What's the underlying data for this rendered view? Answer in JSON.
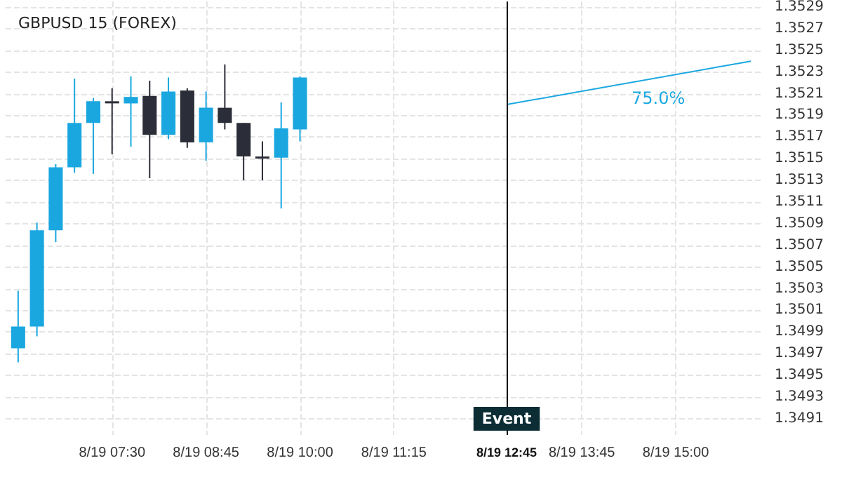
{
  "chart_data": {
    "type": "candlestick",
    "title": "GBPUSD 15 (FOREX)",
    "x": [
      "--08-19T06:15",
      "--08-19T06:30",
      "--08-19T06:45",
      "--08-19T07:00",
      "--08-19T07:15",
      "--08-19T07:30",
      "--08-19T07:45",
      "--08-19T08:00",
      "--08-19T08:15",
      "--08-19T08:30",
      "--08-19T08:45",
      "--08-19T09:00",
      "--08-19T09:15",
      "--08-19T09:30",
      "--08-19T09:45",
      "--08-19T10:00"
    ],
    "ohlc": [
      [
        1.34975,
        1.35028,
        1.34962,
        1.34995
      ],
      [
        1.34995,
        1.35091,
        1.34986,
        1.35084
      ],
      [
        1.35084,
        1.35145,
        1.35073,
        1.35142
      ],
      [
        1.35142,
        1.35224,
        1.35137,
        1.35183
      ],
      [
        1.35183,
        1.35206,
        1.35136,
        1.35203
      ],
      [
        1.35203,
        1.35215,
        1.35154,
        1.35203
      ],
      [
        1.35201,
        1.35226,
        1.35161,
        1.35207
      ],
      [
        1.35208,
        1.35222,
        1.35132,
        1.35172
      ],
      [
        1.35172,
        1.35225,
        1.35168,
        1.35212
      ],
      [
        1.35213,
        1.35215,
        1.3516,
        1.35165
      ],
      [
        1.35165,
        1.35212,
        1.35148,
        1.35197
      ],
      [
        1.35197,
        1.35237,
        1.35177,
        1.35183
      ],
      [
        1.35183,
        1.35183,
        1.3513,
        1.35152
      ],
      [
        1.35152,
        1.35166,
        1.3513,
        1.35152
      ],
      [
        1.35151,
        1.35202,
        1.35104,
        1.35178
      ],
      [
        1.35177,
        1.35226,
        1.35166,
        1.35225
      ]
    ],
    "colors": [
      "#1aa7e0",
      "#1aa7e0",
      "#1aa7e0",
      "#1aa7e0",
      "#1aa7e0",
      "#2b2d38",
      "#1aa7e0",
      "#2b2d38",
      "#1aa7e0",
      "#2b2d38",
      "#1aa7e0",
      "#2b2d38",
      "#2b2d38",
      "#2b2d38",
      "#1aa7e0",
      "#1aa7e0"
    ],
    "series": [
      {
        "type": "line",
        "color": "#1aa7e0",
        "x": [
          "--08-19T12:45",
          "--08-19T16:00"
        ],
        "values": [
          1.352,
          1.3524
        ]
      }
    ],
    "annotations": [
      "75.0%"
    ],
    "ref_lines": [
      {
        "axis": "x",
        "value": "--08-19T12:45",
        "label": "Event",
        "color": "#000000"
      }
    ],
    "xlim": [
      "--08-19T06:05",
      "--08-19T16:10"
    ],
    "xticks": [
      {
        "value": "--08-19T07:30",
        "label": "8/19 07:30"
      },
      {
        "value": "--08-19T08:45",
        "label": "8/19 08:45"
      },
      {
        "value": "--08-19T10:00",
        "label": "8/19 10:00"
      },
      {
        "value": "--08-19T11:15",
        "label": "8/19 11:15"
      },
      {
        "value": "--08-19T12:45",
        "label": "8/19 12:45"
      },
      {
        "value": "--08-19T13:45",
        "label": "8/19 13:45"
      },
      {
        "value": "--08-19T15:00",
        "label": "8/19 15:00"
      }
    ],
    "ylim": [
      1.34895,
      1.35295
    ],
    "yticks": [
      1.3491,
      1.3493,
      1.3495,
      1.3497,
      1.3499,
      1.3501,
      1.3503,
      1.3505,
      1.3507,
      1.3509,
      1.3511,
      1.3513,
      1.3515,
      1.3517,
      1.3519,
      1.3521,
      1.3523,
      1.3525,
      1.3527,
      1.3529
    ],
    "grid": true,
    "legend": false
  }
}
